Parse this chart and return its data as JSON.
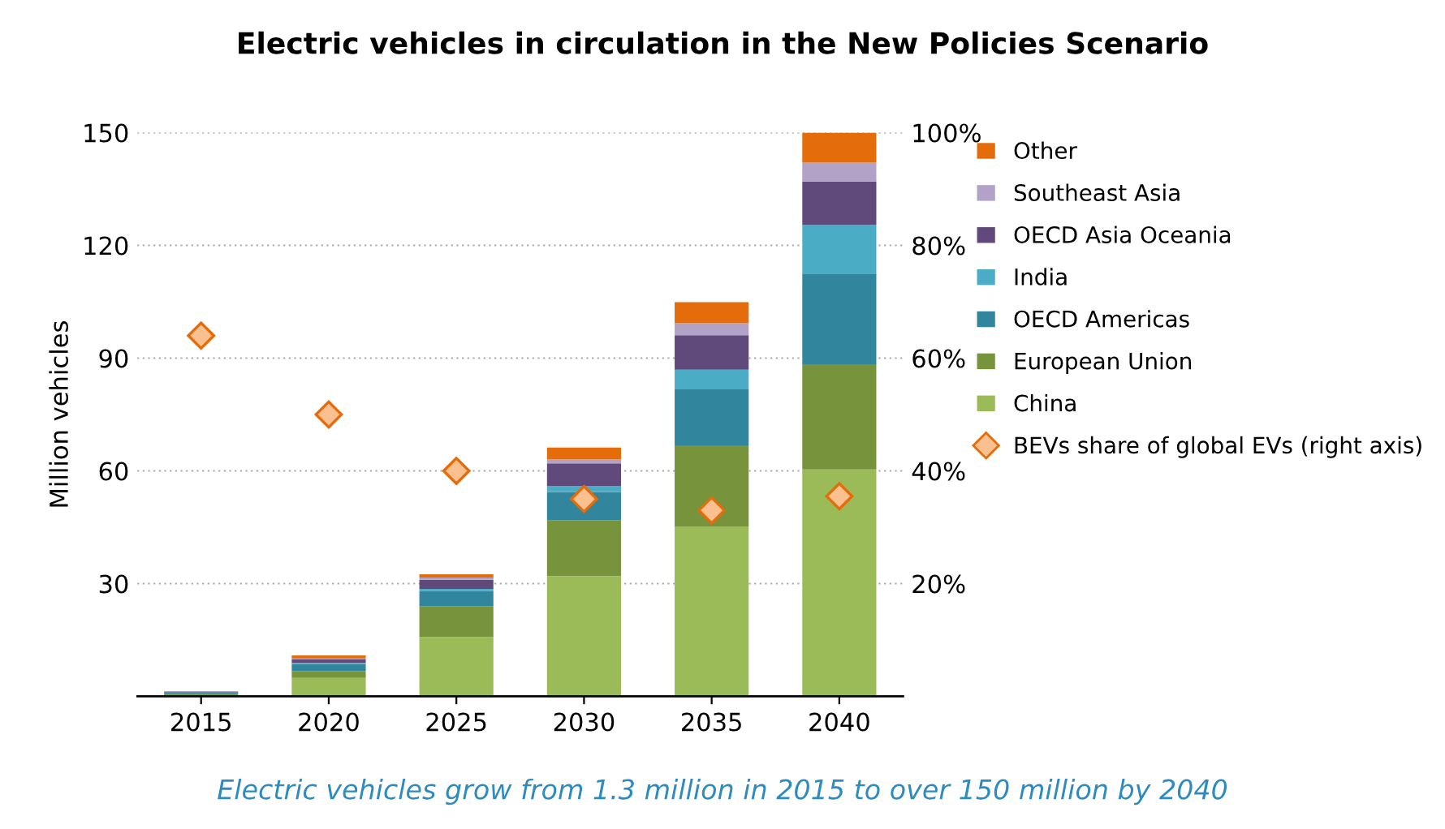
{
  "chart_data": {
    "type": "bar",
    "stacked": true,
    "title": "Electric vehicles in circulation in the New Policies Scenario",
    "ylabel": "Million vehicles",
    "categories": [
      "2015",
      "2020",
      "2025",
      "2030",
      "2035",
      "2040"
    ],
    "series": [
      {
        "name": "China",
        "color": "#9bbb59",
        "values": [
          0.3,
          4.9,
          15.8,
          32.0,
          45.2,
          60.4
        ]
      },
      {
        "name": "European Union",
        "color": "#77933c",
        "values": [
          0.4,
          1.8,
          8.2,
          14.9,
          21.6,
          28.0
        ]
      },
      {
        "name": "OECD Americas",
        "color": "#31859c",
        "values": [
          0.4,
          1.9,
          4.0,
          7.5,
          14.9,
          24.1
        ]
      },
      {
        "name": "India",
        "color": "#4bacc6",
        "values": [
          0.0,
          0.3,
          0.6,
          1.6,
          5.2,
          13.0
        ]
      },
      {
        "name": "OECD Asia Oceania",
        "color": "#604a7b",
        "values": [
          0.2,
          0.9,
          2.4,
          6.0,
          9.2,
          11.5
        ]
      },
      {
        "name": "Southeast Asia",
        "color": "#b3a2c7",
        "values": [
          0.0,
          0.3,
          0.6,
          1.0,
          3.2,
          5.0
        ]
      },
      {
        "name": "Other",
        "color": "#e46c0a",
        "values": [
          0.0,
          0.8,
          0.9,
          3.2,
          5.6,
          8.0
        ]
      },
      {
        "name": "BEVs share of global EVs (right axis)",
        "type": "scatter",
        "axis": "y2",
        "marker": "diamond",
        "color": "#fac090",
        "values": [
          64,
          50,
          40,
          35,
          33,
          35.5
        ]
      }
    ],
    "ylim": [
      0,
      150
    ],
    "yticks": [
      30,
      60,
      90,
      120,
      150
    ],
    "y2lim": [
      0,
      100
    ],
    "y2ticks": [
      {
        "value": 20,
        "label": "20%"
      },
      {
        "value": 40,
        "label": "40%"
      },
      {
        "value": 60,
        "label": "60%"
      },
      {
        "value": 80,
        "label": "80%"
      },
      {
        "value": 100,
        "label": "100%"
      }
    ],
    "grid": "y",
    "legend": "right",
    "annotations": [
      "Electric vehicles grow from 1.3 million in 2015 to over 150 million by 2040"
    ]
  }
}
